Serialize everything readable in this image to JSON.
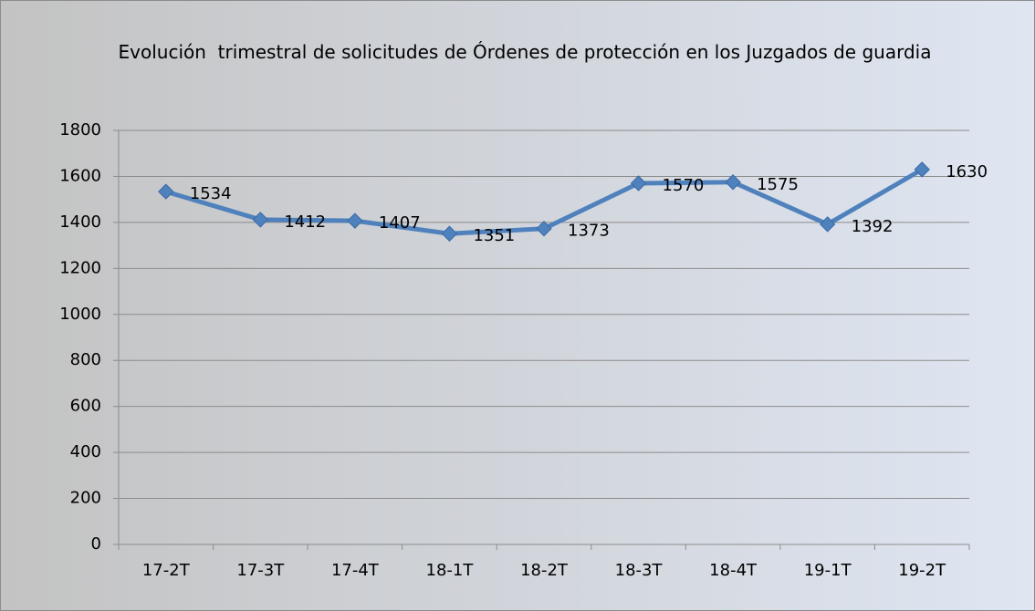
{
  "chart_data": {
    "type": "line",
    "title": "Evolución  trimestral de solicitudes de Órdenes de protección en los Juzgados de guardia",
    "categories": [
      "17-2T",
      "17-3T",
      "17-4T",
      "18-1T",
      "18-2T",
      "18-3T",
      "18-4T",
      "19-1T",
      "19-2T"
    ],
    "values": [
      1534,
      1412,
      1407,
      1351,
      1373,
      1570,
      1575,
      1392,
      1630
    ],
    "color": "#4f81bd",
    "ylim": [
      0,
      1800
    ],
    "yticks": [
      0,
      200,
      400,
      600,
      800,
      1000,
      1200,
      1400,
      1600,
      1800
    ],
    "grid": true
  }
}
